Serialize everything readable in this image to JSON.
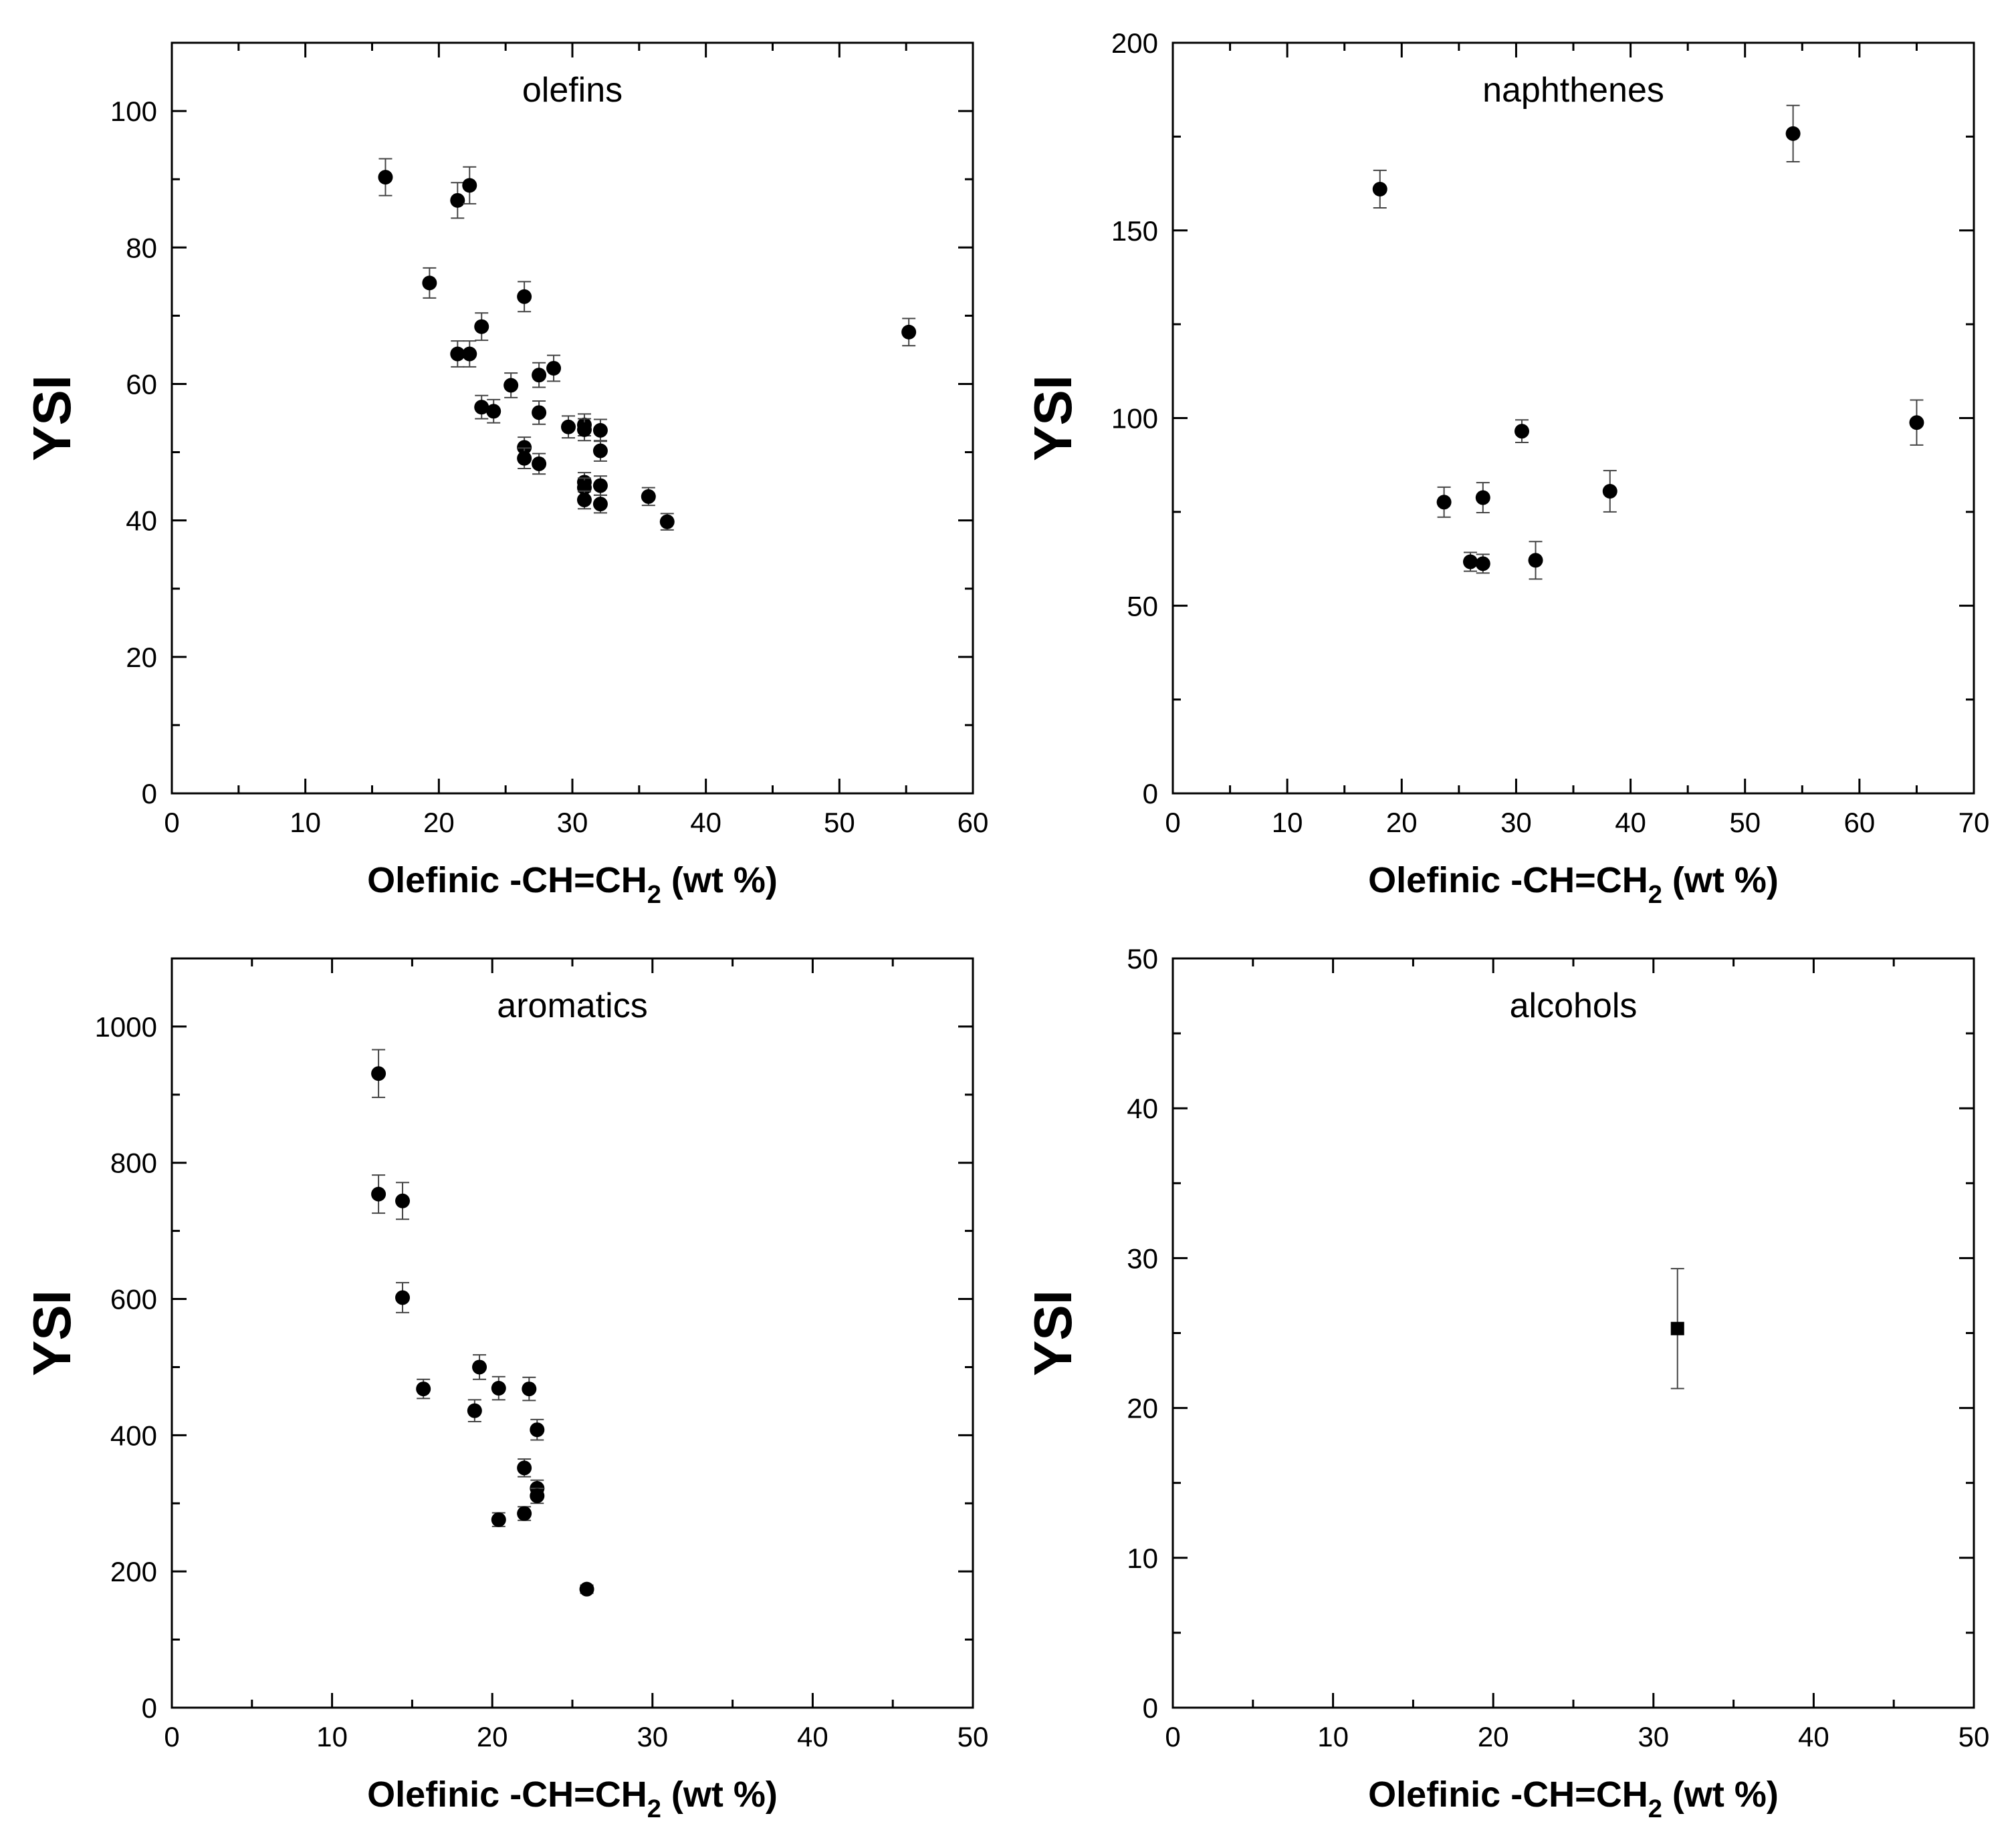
{
  "chart_data": [
    {
      "type": "scatter",
      "title": "olefins",
      "xlabel": "Olefinic -CH=CH",
      "xlabel_sub": "2",
      "xlabel_tail": " (wt %)",
      "ylabel": "YSI",
      "xlim": [
        0,
        60
      ],
      "ylim": [
        0,
        110
      ],
      "xticks": [
        0,
        10,
        20,
        30,
        40,
        50,
        60
      ],
      "xtick_labels": [
        "0",
        "10",
        "20",
        "30",
        "40",
        "50",
        "60"
      ],
      "yticks": [
        0,
        20,
        40,
        60,
        80,
        100
      ],
      "ytick_labels": [
        "0",
        "20",
        "40",
        "60",
        "80",
        "100"
      ],
      "xminor": 5,
      "yminor": 10,
      "marker": "circle",
      "points": [
        {
          "x": 16.0,
          "y": 90.3,
          "err": 2.7
        },
        {
          "x": 21.4,
          "y": 86.9,
          "err": 2.6
        },
        {
          "x": 22.3,
          "y": 89.1,
          "err": 2.7
        },
        {
          "x": 19.3,
          "y": 74.8,
          "err": 2.2
        },
        {
          "x": 26.4,
          "y": 72.8,
          "err": 2.2
        },
        {
          "x": 23.2,
          "y": 68.4,
          "err": 2.0
        },
        {
          "x": 21.4,
          "y": 64.4,
          "err": 1.9
        },
        {
          "x": 22.3,
          "y": 64.4,
          "err": 1.9
        },
        {
          "x": 25.4,
          "y": 59.8,
          "err": 1.8
        },
        {
          "x": 27.5,
          "y": 61.3,
          "err": 1.8
        },
        {
          "x": 28.6,
          "y": 62.3,
          "err": 1.9
        },
        {
          "x": 23.2,
          "y": 56.6,
          "err": 1.7
        },
        {
          "x": 24.1,
          "y": 56.0,
          "err": 1.7
        },
        {
          "x": 27.5,
          "y": 55.8,
          "err": 1.7
        },
        {
          "x": 29.7,
          "y": 53.7,
          "err": 1.6
        },
        {
          "x": 30.9,
          "y": 54.0,
          "err": 1.6
        },
        {
          "x": 30.9,
          "y": 53.3,
          "err": 1.6
        },
        {
          "x": 32.1,
          "y": 53.2,
          "err": 1.6
        },
        {
          "x": 26.4,
          "y": 50.7,
          "err": 1.5
        },
        {
          "x": 26.4,
          "y": 49.1,
          "err": 1.5
        },
        {
          "x": 27.5,
          "y": 48.3,
          "err": 1.5
        },
        {
          "x": 32.1,
          "y": 50.2,
          "err": 1.5
        },
        {
          "x": 30.9,
          "y": 45.6,
          "err": 1.4
        },
        {
          "x": 30.9,
          "y": 44.8,
          "err": 1.4
        },
        {
          "x": 32.1,
          "y": 45.1,
          "err": 1.4
        },
        {
          "x": 30.9,
          "y": 43.0,
          "err": 1.3
        },
        {
          "x": 32.1,
          "y": 42.4,
          "err": 1.3
        },
        {
          "x": 35.7,
          "y": 43.5,
          "err": 1.3
        },
        {
          "x": 37.1,
          "y": 39.8,
          "err": 1.2
        },
        {
          "x": 55.2,
          "y": 67.6,
          "err": 2.0
        }
      ]
    },
    {
      "type": "scatter",
      "title": "naphthenes",
      "xlabel": "Olefinic -CH=CH",
      "xlabel_sub": "2",
      "xlabel_tail": " (wt %)",
      "ylabel": "YSI",
      "xlim": [
        0,
        70
      ],
      "ylim": [
        0,
        200
      ],
      "xticks": [
        0,
        10,
        20,
        30,
        40,
        50,
        60,
        70
      ],
      "xtick_labels": [
        "0",
        "10",
        "20",
        "30",
        "40",
        "50",
        "60",
        "70"
      ],
      "yticks": [
        0,
        50,
        100,
        150,
        200
      ],
      "ytick_labels": [
        "0",
        "50",
        "100",
        "150",
        "200"
      ],
      "xminor": 5,
      "yminor": 25,
      "marker": "circle",
      "points": [
        {
          "x": 18.1,
          "y": 161.0,
          "err": 5.0
        },
        {
          "x": 54.2,
          "y": 175.8,
          "err": 7.5
        },
        {
          "x": 30.5,
          "y": 96.5,
          "err": 3.0
        },
        {
          "x": 65.0,
          "y": 98.8,
          "err": 6.0
        },
        {
          "x": 23.7,
          "y": 77.6,
          "err": 4.0
        },
        {
          "x": 27.1,
          "y": 78.8,
          "err": 4.0
        },
        {
          "x": 38.2,
          "y": 80.5,
          "err": 5.5
        },
        {
          "x": 26.0,
          "y": 61.7,
          "err": 2.5
        },
        {
          "x": 27.1,
          "y": 61.2,
          "err": 2.5
        },
        {
          "x": 31.7,
          "y": 62.1,
          "err": 5.0
        }
      ]
    },
    {
      "type": "scatter",
      "title": "aromatics",
      "xlabel": "Olefinic -CH=CH",
      "xlabel_sub": "2",
      "xlabel_tail": " (wt %)",
      "ylabel": "YSI",
      "xlim": [
        0,
        50
      ],
      "ylim": [
        0,
        1100
      ],
      "xticks": [
        0,
        10,
        20,
        30,
        40,
        50
      ],
      "xtick_labels": [
        "0",
        "10",
        "20",
        "30",
        "40",
        "50"
      ],
      "yticks": [
        0,
        200,
        400,
        600,
        800,
        1000
      ],
      "ytick_labels": [
        "0",
        "200",
        "400",
        "600",
        "800",
        "1000"
      ],
      "xminor": 5,
      "yminor": 100,
      "marker": "circle",
      "points": [
        {
          "x": 12.9,
          "y": 931,
          "err": 35
        },
        {
          "x": 12.9,
          "y": 754,
          "err": 28
        },
        {
          "x": 14.4,
          "y": 744,
          "err": 27
        },
        {
          "x": 14.4,
          "y": 602,
          "err": 22
        },
        {
          "x": 15.7,
          "y": 468,
          "err": 14
        },
        {
          "x": 19.2,
          "y": 500,
          "err": 18
        },
        {
          "x": 20.4,
          "y": 469,
          "err": 17
        },
        {
          "x": 22.3,
          "y": 468,
          "err": 17
        },
        {
          "x": 18.9,
          "y": 436,
          "err": 16
        },
        {
          "x": 22.8,
          "y": 408,
          "err": 15
        },
        {
          "x": 22.0,
          "y": 352,
          "err": 13
        },
        {
          "x": 22.8,
          "y": 322,
          "err": 12
        },
        {
          "x": 22.8,
          "y": 311,
          "err": 11
        },
        {
          "x": 20.4,
          "y": 276,
          "err": 10
        },
        {
          "x": 22.0,
          "y": 285,
          "err": 10
        },
        {
          "x": 25.9,
          "y": 174,
          "err": 6
        }
      ]
    },
    {
      "type": "scatter",
      "title": "alcohols",
      "xlabel": "Olefinic -CH=CH",
      "xlabel_sub": "2",
      "xlabel_tail": " (wt %)",
      "ylabel": "YSI",
      "xlim": [
        0,
        50
      ],
      "ylim": [
        0,
        50
      ],
      "xticks": [
        0,
        10,
        20,
        30,
        40,
        50
      ],
      "xtick_labels": [
        "0",
        "10",
        "20",
        "30",
        "40",
        "50"
      ],
      "yticks": [
        0,
        10,
        20,
        30,
        40,
        50
      ],
      "ytick_labels": [
        "0",
        "10",
        "20",
        "30",
        "40",
        "50"
      ],
      "xminor": 5,
      "yminor": 5,
      "marker": "square",
      "points": [
        {
          "x": 31.5,
          "y": 25.3,
          "err": 4.0
        }
      ]
    }
  ]
}
